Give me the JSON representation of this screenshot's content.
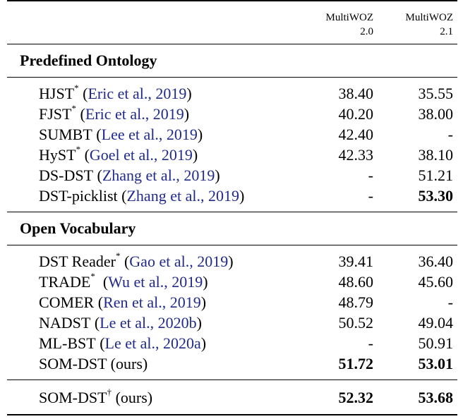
{
  "header": {
    "col1": "",
    "col2_line1": "MultiWOZ",
    "col2_line2": "2.0",
    "col3_line1": "MultiWOZ",
    "col3_line2": "2.1"
  },
  "sections": [
    {
      "title": "Predefined Ontology",
      "rows": [
        {
          "name": "HJST",
          "mark": "*",
          "sep": " (",
          "cite_author": "Eric et al.,",
          "cite_year": "2019",
          "close": ")",
          "v20": "38.40",
          "v21": "35.55"
        },
        {
          "name": "FJST",
          "mark": "*",
          "sep": " (",
          "cite_author": "Eric et al.,",
          "cite_year": "2019",
          "close": ")",
          "v20": "40.20",
          "v21": "38.00"
        },
        {
          "name": "SUMBT",
          "mark": "",
          "sep": " (",
          "cite_author": "Lee et al.,",
          "cite_year": "2019",
          "close": ")",
          "v20": "42.40",
          "v21": "-"
        },
        {
          "name": "HyST",
          "mark": "*",
          "sep": " (",
          "cite_author": "Goel et al.,",
          "cite_year": "2019",
          "close": ")",
          "v20": "42.33",
          "v21": "38.10"
        },
        {
          "name": "DS-DST",
          "mark": "",
          "sep": " (",
          "cite_author": "Zhang et al.,",
          "cite_year": "2019",
          "close": ")",
          "v20": "-",
          "v21": "51.21"
        },
        {
          "name": "DST-picklist",
          "mark": "",
          "sep": " (",
          "cite_author": "Zhang et al.,",
          "cite_year": "2019",
          "close": ")",
          "v20": "-",
          "v21": "53.30"
        }
      ]
    },
    {
      "title": "Open Vocabulary",
      "rows": [
        {
          "name": "DST Reader",
          "mark": "*",
          "sep": " (",
          "cite_author": "Gao et al.,",
          "cite_year": "2019",
          "close": ")",
          "v20": "39.41",
          "v21": "36.40"
        },
        {
          "name": "TRADE",
          "mark": "*",
          "sep": "  (",
          "cite_author": "Wu et al.,",
          "cite_year": "2019",
          "close": ")",
          "v20": "48.60",
          "v21": "45.60"
        },
        {
          "name": "COMER",
          "mark": "",
          "sep": " (",
          "cite_author": "Ren et al.,",
          "cite_year": "2019",
          "close": ")",
          "v20": "48.79",
          "v21": "-"
        },
        {
          "name": "NADST",
          "mark": "",
          "sep": " (",
          "cite_author": "Le et al.,",
          "cite_year": "2020b",
          "close": ")",
          "v20": "50.52",
          "v21": "49.04"
        },
        {
          "name": "ML-BST",
          "mark": "",
          "sep": " (",
          "cite_author": "Le et al.,",
          "cite_year": "2020a",
          "close": ")",
          "v20": "-",
          "v21": "50.91"
        },
        {
          "name": "SOM-DST (ours)",
          "mark": "",
          "sep": "",
          "cite_author": "",
          "cite_year": "",
          "close": "",
          "v20": "51.72",
          "v21": "53.01"
        }
      ]
    }
  ],
  "final_row": {
    "name": "SOM-DST",
    "mark": "†",
    "suffix": " (ours)",
    "v20": "52.32",
    "v21": "53.68"
  }
}
